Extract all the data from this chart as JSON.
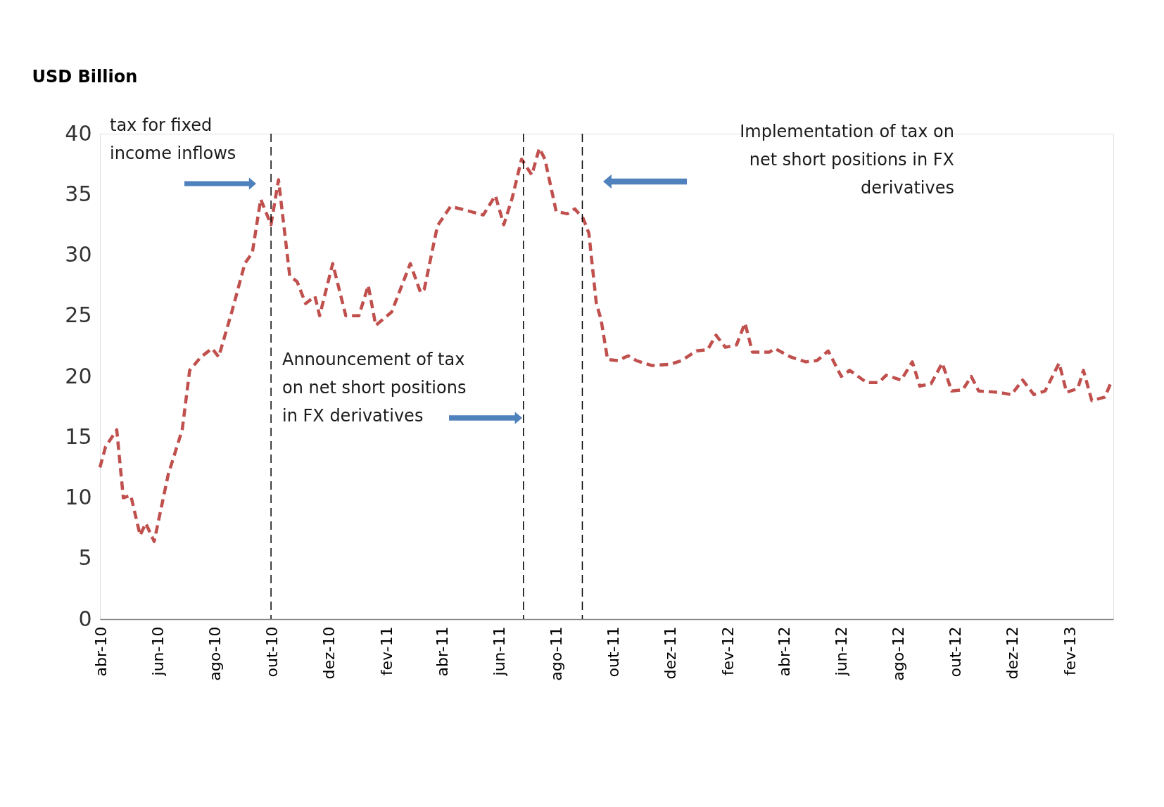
{
  "chart_data": {
    "type": "line",
    "ylabel": "USD Billion",
    "x": [
      "2010-04-01",
      "2010-04-07",
      "2010-04-19",
      "2010-04-26",
      "2010-05-04",
      "2010-05-14",
      "2010-05-20",
      "2010-05-29",
      "2010-06-13",
      "2010-06-28",
      "2010-07-06",
      "2010-07-18",
      "2010-07-30",
      "2010-08-06",
      "2010-08-20",
      "2010-09-03",
      "2010-09-11",
      "2010-09-20",
      "2010-10-01",
      "2010-10-09",
      "2010-10-21",
      "2010-10-29",
      "2010-11-07",
      "2010-11-17",
      "2010-11-22",
      "2010-12-06",
      "2010-12-20",
      "2011-01-03",
      "2011-01-13",
      "2011-01-21",
      "2011-02-07",
      "2011-02-27",
      "2011-03-10",
      "2011-03-14",
      "2011-03-28",
      "2011-04-11",
      "2011-04-22",
      "2011-05-16",
      "2011-05-29",
      "2011-06-07",
      "2011-06-16",
      "2011-06-26",
      "2011-07-07",
      "2011-07-15",
      "2011-07-21",
      "2011-08-02",
      "2011-08-14",
      "2011-08-22",
      "2011-08-31",
      "2011-09-06",
      "2011-09-14",
      "2011-09-19",
      "2011-09-26",
      "2011-10-07",
      "2011-10-18",
      "2011-10-27",
      "2011-11-12",
      "2011-12-02",
      "2011-12-14",
      "2011-12-30",
      "2012-01-11",
      "2012-01-20",
      "2012-01-30",
      "2012-02-11",
      "2012-02-20",
      "2012-02-28",
      "2012-03-17",
      "2012-03-23",
      "2012-04-09",
      "2012-04-25",
      "2012-05-07",
      "2012-05-19",
      "2012-06-02",
      "2012-06-11",
      "2012-06-29",
      "2012-07-12",
      "2012-07-20",
      "2012-08-05",
      "2012-08-17",
      "2012-08-25",
      "2012-09-06",
      "2012-09-18",
      "2012-09-28",
      "2012-10-10",
      "2012-10-19",
      "2012-10-27",
      "2012-11-16",
      "2012-12-01",
      "2012-12-13",
      "2012-12-25",
      "2013-01-06",
      "2013-01-21",
      "2013-01-29",
      "2013-02-10",
      "2013-02-16",
      "2013-02-25",
      "2013-03-11",
      "2013-03-17"
    ],
    "series": [
      {
        "color": "#c0504d",
        "values": [
          12.5,
          14.2,
          15.6,
          10.0,
          10.2,
          6.9,
          7.9,
          6.4,
          11.9,
          15.6,
          20.5,
          21.6,
          22.3,
          21.6,
          25.3,
          29.3,
          30.2,
          34.6,
          32.5,
          36.2,
          28.3,
          27.8,
          26.0,
          26.6,
          25.0,
          29.3,
          25.0,
          25.0,
          27.5,
          24.2,
          25.3,
          29.3,
          26.9,
          27.2,
          32.4,
          34.0,
          33.8,
          33.3,
          34.9,
          32.5,
          34.7,
          37.9,
          36.6,
          38.8,
          37.9,
          33.6,
          33.4,
          33.8,
          33.0,
          31.8,
          26.0,
          24.7,
          21.4,
          21.3,
          21.7,
          21.3,
          20.9,
          21.0,
          21.3,
          22.1,
          22.2,
          23.4,
          22.4,
          22.6,
          24.4,
          22.0,
          22.0,
          22.3,
          21.6,
          21.2,
          21.3,
          22.1,
          20.0,
          20.5,
          19.5,
          19.5,
          20.1,
          19.7,
          21.2,
          19.2,
          19.4,
          21.1,
          18.8,
          18.9,
          20.0,
          18.8,
          18.7,
          18.5,
          19.7,
          18.5,
          18.8,
          21.1,
          18.7,
          19.0,
          20.5,
          18.0,
          18.3,
          19.4
        ]
      }
    ],
    "line_style": "dashed",
    "marker": "none",
    "grid": false,
    "ylim": [
      0,
      40
    ],
    "yticks": [
      0,
      5,
      10,
      15,
      20,
      25,
      30,
      35,
      40
    ],
    "xlim": [
      "2010-04-01",
      "2013-03-20"
    ],
    "xticks": [
      {
        "value": "2010-04-02",
        "label": "abr-10"
      },
      {
        "value": "2010-06-02",
        "label": "jun-10"
      },
      {
        "value": "2010-08-02",
        "label": "ago-10"
      },
      {
        "value": "2010-10-02",
        "label": "out-10"
      },
      {
        "value": "2010-12-02",
        "label": "dez-10"
      },
      {
        "value": "2011-02-02",
        "label": "fev-11"
      },
      {
        "value": "2011-04-02",
        "label": "abr-11"
      },
      {
        "value": "2011-06-02",
        "label": "jun-11"
      },
      {
        "value": "2011-08-02",
        "label": "ago-11"
      },
      {
        "value": "2011-10-02",
        "label": "out-11"
      },
      {
        "value": "2011-12-02",
        "label": "dez-11"
      },
      {
        "value": "2012-02-02",
        "label": "fev-12"
      },
      {
        "value": "2012-04-02",
        "label": "abr-12"
      },
      {
        "value": "2012-06-02",
        "label": "jun-12"
      },
      {
        "value": "2012-08-02",
        "label": "ago-12"
      },
      {
        "value": "2012-10-02",
        "label": "out-12"
      },
      {
        "value": "2012-12-02",
        "label": "dez-12"
      },
      {
        "value": "2013-02-02",
        "label": "fev-13"
      }
    ],
    "ref_lines": [
      {
        "axis": "x",
        "value": "2010-10-01",
        "line_style": "dashed",
        "color": "#000000"
      },
      {
        "axis": "x",
        "value": "2011-06-28",
        "line_style": "dashed",
        "color": "#000000"
      },
      {
        "axis": "x",
        "value": "2011-08-30",
        "line_style": "dashed",
        "color": "#000000"
      }
    ],
    "annotations": [
      "tax for fixed\nincome inflows",
      "Announcement of tax\non net short positions\nin FX derivatives",
      "Implementation of tax on\nnet short positions in FX\nderivatives"
    ]
  }
}
